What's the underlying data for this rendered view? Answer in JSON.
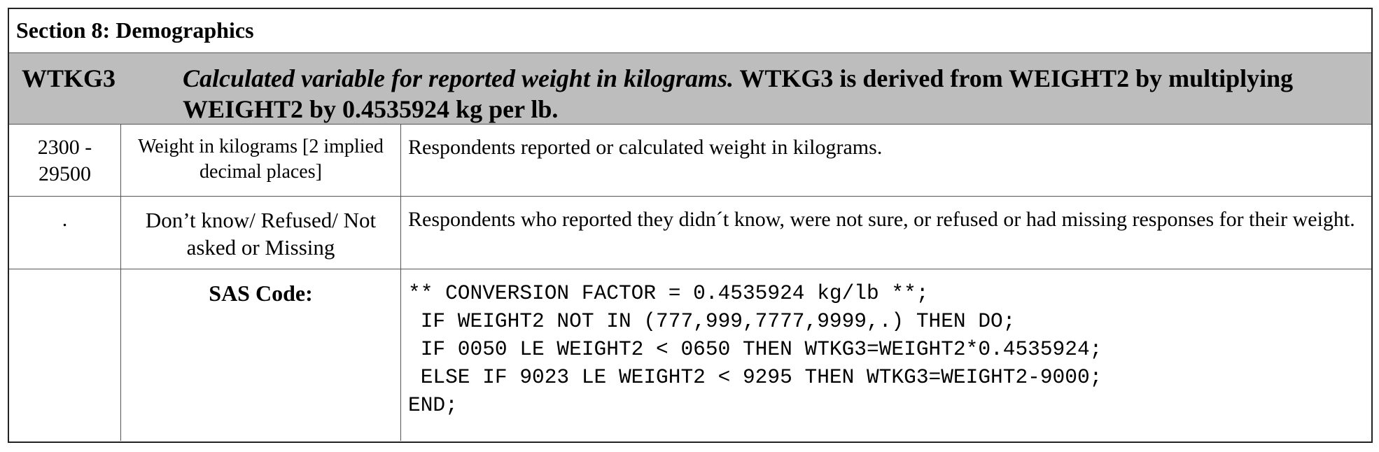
{
  "section": {
    "title": "Section 8: Demographics"
  },
  "variable": {
    "name": "WTKG3",
    "label_italic": "Calculated variable for reported weight in kilograms.",
    "label_rest": " WTKG3 is derived from WEIGHT2 by multiplying WEIGHT2 by 0.4535924 kg per lb."
  },
  "rows": [
    {
      "value": "2300 - 29500",
      "value_label": "Weight in kilograms [2 implied decimal places]",
      "description": "Respondents reported or calculated weight in kilograms."
    },
    {
      "value": ".",
      "value_label": "Don’t know/ Refused/ Not asked or Missing",
      "description": "Respondents who reported they didn´t know, were not sure, or refused or had missing responses for their weight."
    }
  ],
  "sas": {
    "label": "SAS Code:",
    "code": "** CONVERSION FACTOR = 0.4535924 kg/lb **;\n IF WEIGHT2 NOT IN (777,999,7777,9999,.) THEN DO;\n IF 0050 LE WEIGHT2 < 0650 THEN WTKG3=WEIGHT2*0.4535924;\n ELSE IF 9023 LE WEIGHT2 < 9295 THEN WTKG3=WEIGHT2-9000;\nEND;"
  }
}
